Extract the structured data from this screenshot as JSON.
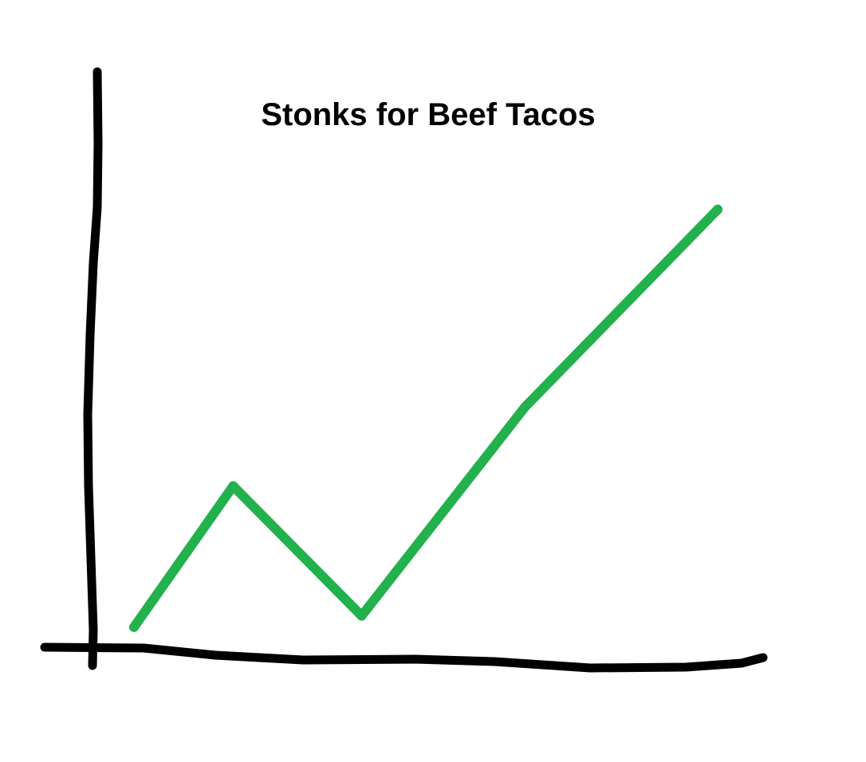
{
  "chart_data": {
    "type": "line",
    "title": "Stonks for Beef Tacos",
    "xlabel": "",
    "ylabel": "",
    "grid": false,
    "legend": "none",
    "series": [
      {
        "color": "#22b14c",
        "x": [
          0.0,
          0.17,
          0.39,
          0.67,
          1.0
        ],
        "y": [
          0.03,
          0.28,
          0.05,
          0.42,
          0.77
        ]
      }
    ],
    "xlim": [
      0,
      1
    ],
    "ylim": [
      0,
      1
    ]
  },
  "colors": {
    "axis": "#000000",
    "background": "#ffffff"
  }
}
